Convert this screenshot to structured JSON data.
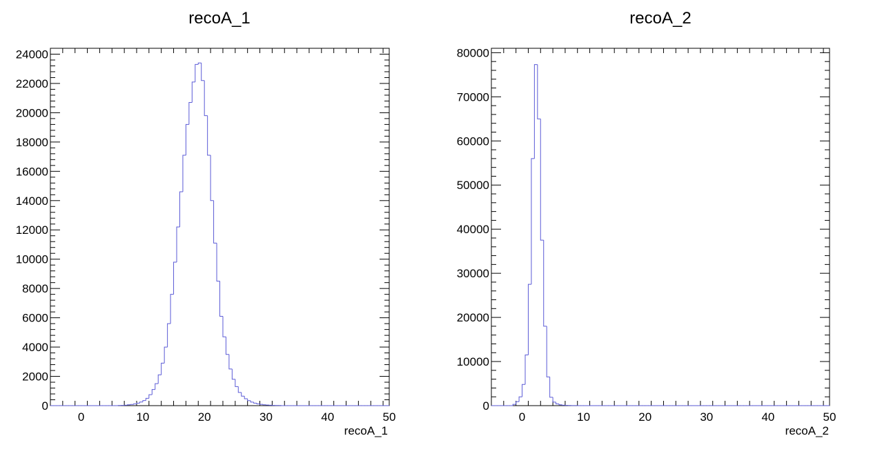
{
  "chart_data": [
    {
      "type": "bar",
      "title": "recoA_1",
      "xlabel": "recoA_1",
      "ylabel": "",
      "xlim": [
        -5,
        50
      ],
      "ylim": [
        0,
        24400
      ],
      "x_ticks": [
        0,
        10,
        20,
        30,
        40,
        50
      ],
      "y_ticks": [
        0,
        2000,
        4000,
        6000,
        8000,
        10000,
        12000,
        14000,
        16000,
        18000,
        20000,
        22000,
        24000
      ],
      "grid": false,
      "bin_width": 0.5,
      "bin_start": -5,
      "values": [
        0,
        0,
        0,
        0,
        0,
        0,
        0,
        0,
        0,
        0,
        0,
        0,
        0,
        0,
        0,
        0,
        0,
        0,
        0,
        0,
        0,
        0,
        10,
        20,
        30,
        60,
        80,
        120,
        170,
        250,
        350,
        500,
        750,
        1100,
        1500,
        2100,
        2900,
        4000,
        5600,
        7600,
        9800,
        12200,
        14600,
        17100,
        19200,
        20700,
        22100,
        23300,
        23400,
        22200,
        19800,
        17100,
        14000,
        11100,
        8500,
        6100,
        4700,
        3500,
        2500,
        1800,
        1300,
        900,
        650,
        470,
        340,
        240,
        170,
        120,
        90,
        60,
        40,
        30,
        20,
        10,
        10,
        0,
        0,
        0,
        0,
        0,
        0,
        0,
        0,
        0,
        0,
        0,
        0,
        0,
        0,
        0,
        0,
        0,
        0,
        0,
        0,
        0,
        0,
        0,
        0,
        0,
        0,
        0,
        0,
        0,
        0,
        0,
        0,
        0,
        0,
        0
      ]
    },
    {
      "type": "bar",
      "title": "recoA_2",
      "xlabel": "recoA_2",
      "ylabel": "",
      "xlim": [
        -5,
        50
      ],
      "ylim": [
        0,
        81000
      ],
      "x_ticks": [
        0,
        10,
        20,
        30,
        40,
        50
      ],
      "y_ticks": [
        0,
        10000,
        20000,
        30000,
        40000,
        50000,
        60000,
        70000,
        80000
      ],
      "grid": false,
      "bin_width": 0.5,
      "bin_start": -5,
      "values": [
        0,
        0,
        0,
        0,
        0,
        0,
        0,
        300,
        900,
        2000,
        4800,
        11500,
        27500,
        56000,
        77300,
        65000,
        37500,
        18000,
        6500,
        1900,
        800,
        400,
        200,
        100,
        60,
        40,
        20,
        10,
        0,
        0,
        0,
        0,
        0,
        0,
        0,
        0,
        0,
        0,
        0,
        0,
        0,
        0,
        0,
        0,
        0,
        0,
        0,
        0,
        0,
        0,
        0,
        0,
        0,
        0,
        0,
        0,
        0,
        0,
        0,
        0,
        0,
        0,
        0,
        0,
        0,
        0,
        0,
        0,
        0,
        0,
        0,
        0,
        0,
        0,
        0,
        0,
        0,
        0,
        0,
        0,
        0,
        0,
        0,
        0,
        0,
        0,
        0,
        0,
        0,
        0,
        0,
        0,
        0,
        0,
        0,
        0,
        0,
        0,
        0,
        0,
        0,
        0,
        0,
        0,
        0,
        0,
        0,
        0,
        0,
        0
      ]
    }
  ],
  "colors": {
    "histogram_line": "#5a5ad6",
    "axis": "#000000",
    "background": "#ffffff"
  }
}
